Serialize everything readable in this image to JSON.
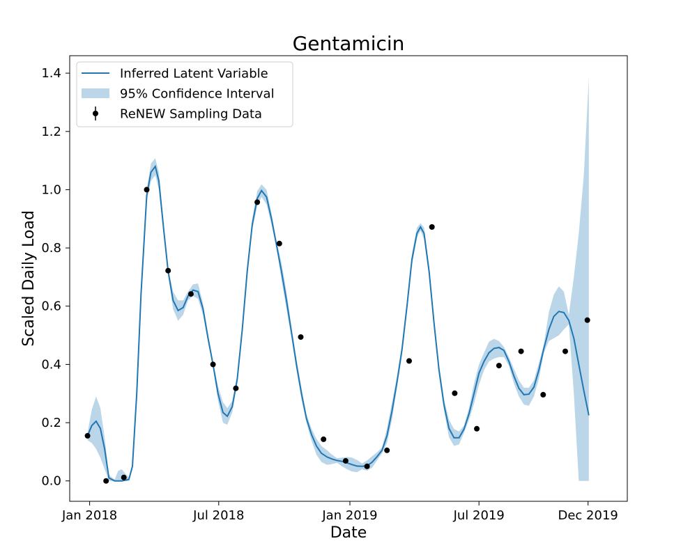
{
  "chart_data": {
    "type": "line",
    "title": "Gentamicin",
    "xlabel": "Date",
    "ylabel": "Scaled Daily Load",
    "xlim": [
      "2017-12-04",
      "2020-01-25"
    ],
    "ylim": [
      -0.07,
      1.46
    ],
    "x_ticks": [
      {
        "date": "2018-01-01",
        "label": "Jan 2018"
      },
      {
        "date": "2018-07-01",
        "label": "Jul 2018"
      },
      {
        "date": "2019-01-01",
        "label": "Jan 2019"
      },
      {
        "date": "2019-07-01",
        "label": "Jul 2019"
      },
      {
        "date": "2019-12-01",
        "label": "Dec 2019"
      }
    ],
    "y_ticks": [
      0.0,
      0.2,
      0.4,
      0.6,
      0.8,
      1.0,
      1.2,
      1.4
    ],
    "y_tick_labels": [
      "0.0",
      "0.2",
      "0.4",
      "0.6",
      "0.8",
      "1.0",
      "1.2",
      "1.4"
    ],
    "grid": false,
    "legend_position": "top-left",
    "colors": {
      "line": "#1f77b4",
      "band": "#1f77b4",
      "points": "#000000"
    },
    "series": [
      {
        "name": "Inferred Latent Variable",
        "kind": "line",
        "points": [
          [
            "2017-12-29",
            0.155
          ],
          [
            "2018-01-04",
            0.19
          ],
          [
            "2018-01-10",
            0.205
          ],
          [
            "2018-01-16",
            0.18
          ],
          [
            "2018-01-22",
            0.11
          ],
          [
            "2018-01-28",
            0.01
          ],
          [
            "2018-02-05",
            0.0
          ],
          [
            "2018-02-15",
            0.0
          ],
          [
            "2018-02-25",
            0.005
          ],
          [
            "2018-03-02",
            0.05
          ],
          [
            "2018-03-08",
            0.3
          ],
          [
            "2018-03-14",
            0.64
          ],
          [
            "2018-03-22",
            0.98
          ],
          [
            "2018-03-28",
            1.06
          ],
          [
            "2018-04-03",
            1.08
          ],
          [
            "2018-04-08",
            1.03
          ],
          [
            "2018-04-15",
            0.86
          ],
          [
            "2018-04-21",
            0.72
          ],
          [
            "2018-04-28",
            0.62
          ],
          [
            "2018-05-05",
            0.585
          ],
          [
            "2018-05-12",
            0.595
          ],
          [
            "2018-05-19",
            0.635
          ],
          [
            "2018-05-26",
            0.655
          ],
          [
            "2018-06-02",
            0.65
          ],
          [
            "2018-06-09",
            0.59
          ],
          [
            "2018-06-16",
            0.49
          ],
          [
            "2018-06-23",
            0.4
          ],
          [
            "2018-06-30",
            0.3
          ],
          [
            "2018-07-07",
            0.235
          ],
          [
            "2018-07-13",
            0.222
          ],
          [
            "2018-07-20",
            0.255
          ],
          [
            "2018-07-27",
            0.35
          ],
          [
            "2018-08-03",
            0.52
          ],
          [
            "2018-08-10",
            0.72
          ],
          [
            "2018-08-17",
            0.88
          ],
          [
            "2018-08-24",
            0.97
          ],
          [
            "2018-08-30",
            0.997
          ],
          [
            "2018-09-06",
            0.975
          ],
          [
            "2018-09-13",
            0.9
          ],
          [
            "2018-09-20",
            0.81
          ],
          [
            "2018-09-27",
            0.72
          ],
          [
            "2018-10-04",
            0.62
          ],
          [
            "2018-10-11",
            0.51
          ],
          [
            "2018-10-18",
            0.4
          ],
          [
            "2018-10-25",
            0.3
          ],
          [
            "2018-11-01",
            0.215
          ],
          [
            "2018-11-08",
            0.16
          ],
          [
            "2018-11-15",
            0.12
          ],
          [
            "2018-11-22",
            0.095
          ],
          [
            "2018-11-30",
            0.082
          ],
          [
            "2018-12-07",
            0.075
          ],
          [
            "2018-12-14",
            0.07
          ],
          [
            "2018-12-21",
            0.067
          ],
          [
            "2018-12-28",
            0.062
          ],
          [
            "2019-01-04",
            0.056
          ],
          [
            "2019-01-11",
            0.051
          ],
          [
            "2019-01-18",
            0.05
          ],
          [
            "2019-01-25",
            0.052
          ],
          [
            "2019-02-01",
            0.064
          ],
          [
            "2019-02-08",
            0.083
          ],
          [
            "2019-02-15",
            0.105
          ],
          [
            "2019-02-22",
            0.155
          ],
          [
            "2019-03-01",
            0.24
          ],
          [
            "2019-03-08",
            0.34
          ],
          [
            "2019-03-15",
            0.45
          ],
          [
            "2019-03-22",
            0.6
          ],
          [
            "2019-03-29",
            0.76
          ],
          [
            "2019-04-05",
            0.85
          ],
          [
            "2019-04-10",
            0.872
          ],
          [
            "2019-04-15",
            0.85
          ],
          [
            "2019-04-22",
            0.72
          ],
          [
            "2019-04-29",
            0.54
          ],
          [
            "2019-05-06",
            0.38
          ],
          [
            "2019-05-13",
            0.26
          ],
          [
            "2019-05-20",
            0.18
          ],
          [
            "2019-05-27",
            0.148
          ],
          [
            "2019-06-03",
            0.148
          ],
          [
            "2019-06-10",
            0.178
          ],
          [
            "2019-06-17",
            0.23
          ],
          [
            "2019-06-24",
            0.3
          ],
          [
            "2019-07-01",
            0.37
          ],
          [
            "2019-07-08",
            0.41
          ],
          [
            "2019-07-15",
            0.44
          ],
          [
            "2019-07-22",
            0.455
          ],
          [
            "2019-07-29",
            0.458
          ],
          [
            "2019-08-05",
            0.448
          ],
          [
            "2019-08-12",
            0.41
          ],
          [
            "2019-08-19",
            0.36
          ],
          [
            "2019-08-26",
            0.318
          ],
          [
            "2019-09-02",
            0.296
          ],
          [
            "2019-09-09",
            0.298
          ],
          [
            "2019-09-16",
            0.322
          ],
          [
            "2019-09-23",
            0.38
          ],
          [
            "2019-09-30",
            0.455
          ],
          [
            "2019-10-07",
            0.52
          ],
          [
            "2019-10-14",
            0.565
          ],
          [
            "2019-10-21",
            0.582
          ],
          [
            "2019-10-28",
            0.578
          ],
          [
            "2019-11-04",
            0.551
          ],
          [
            "2019-11-11",
            0.49
          ],
          [
            "2019-11-18",
            0.4
          ],
          [
            "2019-11-25",
            0.31
          ],
          [
            "2019-12-02",
            0.225
          ]
        ]
      },
      {
        "name": "95% Confidence Interval",
        "kind": "band",
        "points": [
          [
            "2017-12-29",
            0.14,
            0.165
          ],
          [
            "2018-01-04",
            0.13,
            0.245
          ],
          [
            "2018-01-10",
            0.11,
            0.29
          ],
          [
            "2018-01-16",
            0.08,
            0.25
          ],
          [
            "2018-01-22",
            0.04,
            0.15
          ],
          [
            "2018-01-28",
            0.0,
            0.02
          ],
          [
            "2018-02-05",
            0.0,
            0.005
          ],
          [
            "2018-02-10",
            0.0,
            0.035
          ],
          [
            "2018-02-15",
            0.0,
            0.04
          ],
          [
            "2018-02-20",
            0.0,
            0.025
          ],
          [
            "2018-02-25",
            0.0,
            0.012
          ],
          [
            "2018-03-02",
            0.04,
            0.06
          ],
          [
            "2018-03-08",
            0.28,
            0.32
          ],
          [
            "2018-03-14",
            0.62,
            0.66
          ],
          [
            "2018-03-22",
            0.96,
            1.0
          ],
          [
            "2018-03-28",
            1.03,
            1.09
          ],
          [
            "2018-04-03",
            1.05,
            1.108
          ],
          [
            "2018-04-08",
            1.0,
            1.06
          ],
          [
            "2018-04-15",
            0.84,
            0.88
          ],
          [
            "2018-04-21",
            0.71,
            0.73
          ],
          [
            "2018-04-28",
            0.59,
            0.65
          ],
          [
            "2018-05-05",
            0.55,
            0.62
          ],
          [
            "2018-05-12",
            0.57,
            0.62
          ],
          [
            "2018-05-19",
            0.62,
            0.65
          ],
          [
            "2018-05-26",
            0.635,
            0.675
          ],
          [
            "2018-06-02",
            0.625,
            0.678
          ],
          [
            "2018-06-09",
            0.57,
            0.61
          ],
          [
            "2018-06-16",
            0.475,
            0.505
          ],
          [
            "2018-06-23",
            0.39,
            0.41
          ],
          [
            "2018-06-30",
            0.275,
            0.325
          ],
          [
            "2018-07-07",
            0.2,
            0.27
          ],
          [
            "2018-07-13",
            0.193,
            0.25
          ],
          [
            "2018-07-20",
            0.235,
            0.275
          ],
          [
            "2018-07-27",
            0.335,
            0.365
          ],
          [
            "2018-08-03",
            0.5,
            0.54
          ],
          [
            "2018-08-10",
            0.7,
            0.74
          ],
          [
            "2018-08-17",
            0.86,
            0.9
          ],
          [
            "2018-08-24",
            0.945,
            0.995
          ],
          [
            "2018-08-30",
            0.975,
            1.018
          ],
          [
            "2018-09-06",
            0.95,
            1.0
          ],
          [
            "2018-09-13",
            0.88,
            0.92
          ],
          [
            "2018-09-20",
            0.8,
            0.825
          ],
          [
            "2018-09-27",
            0.69,
            0.75
          ],
          [
            "2018-10-04",
            0.59,
            0.65
          ],
          [
            "2018-10-11",
            0.49,
            0.53
          ],
          [
            "2018-10-18",
            0.38,
            0.42
          ],
          [
            "2018-10-25",
            0.28,
            0.32
          ],
          [
            "2018-11-01",
            0.2,
            0.23
          ],
          [
            "2018-11-08",
            0.14,
            0.18
          ],
          [
            "2018-11-15",
            0.09,
            0.145
          ],
          [
            "2018-11-22",
            0.065,
            0.12
          ],
          [
            "2018-11-30",
            0.055,
            0.105
          ],
          [
            "2018-12-07",
            0.058,
            0.09
          ],
          [
            "2018-12-14",
            0.062,
            0.078
          ],
          [
            "2018-12-21",
            0.05,
            0.08
          ],
          [
            "2018-12-28",
            0.04,
            0.082
          ],
          [
            "2019-01-04",
            0.032,
            0.08
          ],
          [
            "2019-01-11",
            0.03,
            0.072
          ],
          [
            "2019-01-18",
            0.04,
            0.06
          ],
          [
            "2019-01-25",
            0.035,
            0.07
          ],
          [
            "2019-02-01",
            0.045,
            0.085
          ],
          [
            "2019-02-08",
            0.07,
            0.098
          ],
          [
            "2019-02-15",
            0.095,
            0.115
          ],
          [
            "2019-02-22",
            0.13,
            0.18
          ],
          [
            "2019-03-01",
            0.21,
            0.27
          ],
          [
            "2019-03-08",
            0.32,
            0.36
          ],
          [
            "2019-03-15",
            0.43,
            0.47
          ],
          [
            "2019-03-22",
            0.58,
            0.62
          ],
          [
            "2019-03-29",
            0.74,
            0.78
          ],
          [
            "2019-04-05",
            0.835,
            0.87
          ],
          [
            "2019-04-10",
            0.86,
            0.885
          ],
          [
            "2019-04-15",
            0.83,
            0.87
          ],
          [
            "2019-04-22",
            0.7,
            0.74
          ],
          [
            "2019-04-29",
            0.52,
            0.56
          ],
          [
            "2019-05-06",
            0.36,
            0.4
          ],
          [
            "2019-05-13",
            0.24,
            0.28
          ],
          [
            "2019-05-20",
            0.15,
            0.21
          ],
          [
            "2019-05-27",
            0.12,
            0.178
          ],
          [
            "2019-06-03",
            0.125,
            0.17
          ],
          [
            "2019-06-10",
            0.165,
            0.19
          ],
          [
            "2019-06-17",
            0.21,
            0.25
          ],
          [
            "2019-06-24",
            0.265,
            0.335
          ],
          [
            "2019-07-01",
            0.33,
            0.4
          ],
          [
            "2019-07-08",
            0.38,
            0.44
          ],
          [
            "2019-07-15",
            0.41,
            0.478
          ],
          [
            "2019-07-22",
            0.42,
            0.488
          ],
          [
            "2019-07-29",
            0.425,
            0.48
          ],
          [
            "2019-08-05",
            0.425,
            0.46
          ],
          [
            "2019-08-12",
            0.395,
            0.425
          ],
          [
            "2019-08-19",
            0.335,
            0.385
          ],
          [
            "2019-08-26",
            0.29,
            0.345
          ],
          [
            "2019-09-02",
            0.262,
            0.32
          ],
          [
            "2019-09-09",
            0.258,
            0.32
          ],
          [
            "2019-09-16",
            0.29,
            0.345
          ],
          [
            "2019-09-23",
            0.35,
            0.405
          ],
          [
            "2019-09-30",
            0.44,
            0.47
          ],
          [
            "2019-10-07",
            0.48,
            0.58
          ],
          [
            "2019-10-14",
            0.49,
            0.64
          ],
          [
            "2019-10-21",
            0.5,
            0.668
          ],
          [
            "2019-10-28",
            0.52,
            0.65
          ],
          [
            "2019-11-04",
            0.538,
            0.57
          ],
          [
            "2019-11-11",
            0.3,
            0.7
          ],
          [
            "2019-11-18",
            0.0,
            0.85
          ],
          [
            "2019-11-25",
            0.0,
            1.05
          ],
          [
            "2019-12-02",
            0.0,
            1.385
          ]
        ]
      },
      {
        "name": "ReNEW Sampling Data",
        "kind": "scatter",
        "points": [
          [
            "2017-12-29",
            0.155
          ],
          [
            "2018-01-24",
            0.0
          ],
          [
            "2018-02-18",
            0.012
          ],
          [
            "2018-03-22",
            1.0
          ],
          [
            "2018-04-21",
            0.722
          ],
          [
            "2018-05-23",
            0.642
          ],
          [
            "2018-06-23",
            0.4
          ],
          [
            "2018-07-25",
            0.318
          ],
          [
            "2018-08-24",
            0.957
          ],
          [
            "2018-09-24",
            0.815
          ],
          [
            "2018-10-24",
            0.494
          ],
          [
            "2018-11-25",
            0.143
          ],
          [
            "2018-12-26",
            0.069
          ],
          [
            "2019-01-25",
            0.05
          ],
          [
            "2019-02-22",
            0.105
          ],
          [
            "2019-03-25",
            0.412
          ],
          [
            "2019-04-26",
            0.872
          ],
          [
            "2019-05-28",
            0.301
          ],
          [
            "2019-06-28",
            0.179
          ],
          [
            "2019-07-29",
            0.396
          ],
          [
            "2019-08-29",
            0.445
          ],
          [
            "2019-09-29",
            0.296
          ],
          [
            "2019-10-30",
            0.445
          ],
          [
            "2019-11-30",
            0.552
          ]
        ]
      }
    ],
    "legend": [
      {
        "label": "Inferred Latent Variable",
        "swatch": "line"
      },
      {
        "label": "95% Confidence Interval",
        "swatch": "band"
      },
      {
        "label": "ReNEW Sampling Data",
        "swatch": "errorbar-point"
      }
    ]
  }
}
